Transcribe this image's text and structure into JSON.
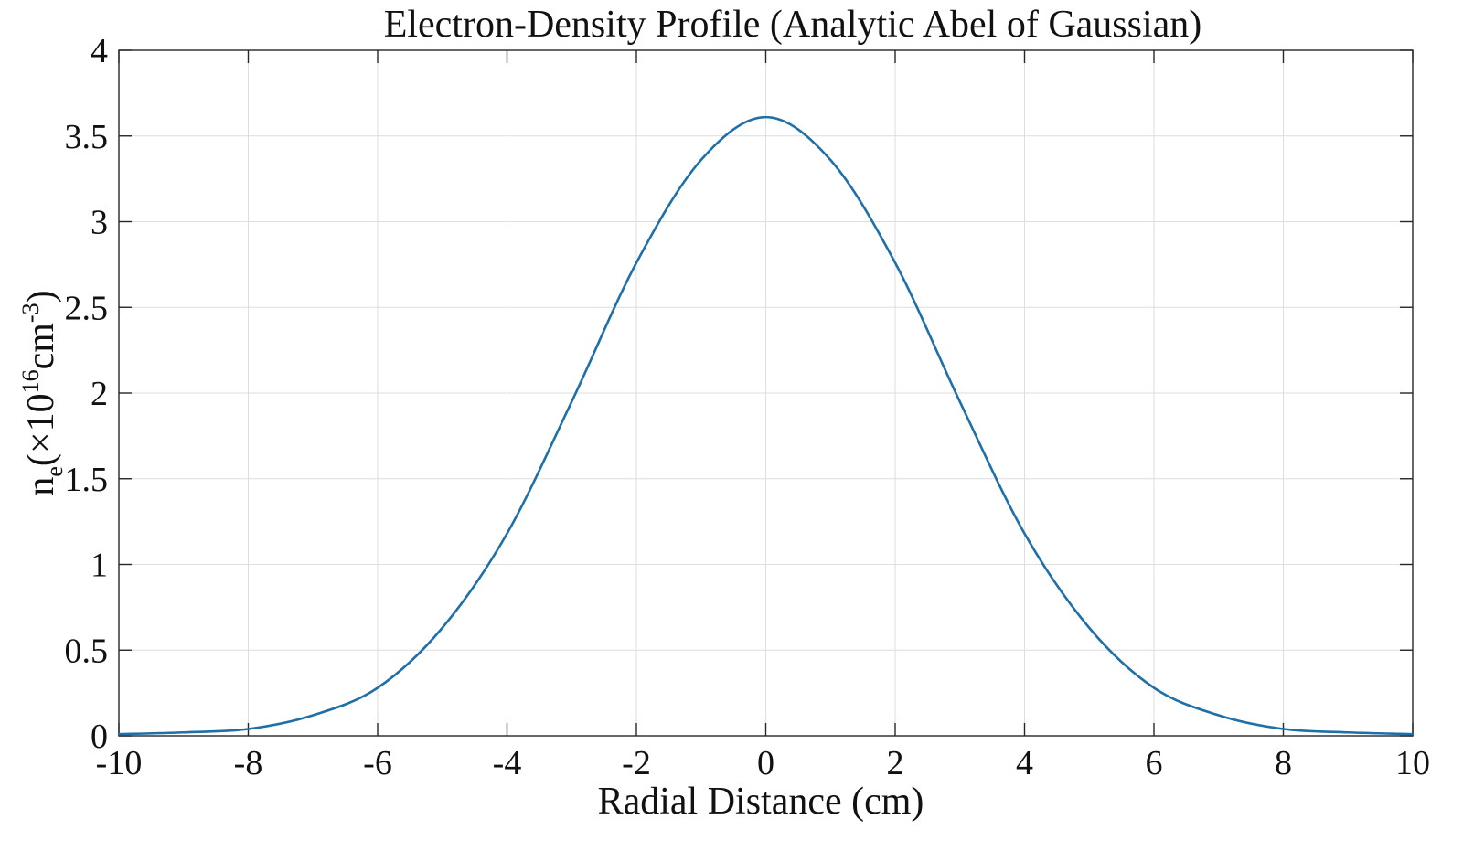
{
  "chart_data": {
    "type": "line",
    "title": "Electron-Density Profile (Analytic Abel of Gaussian)",
    "xlabel": "Radial Distance (cm)",
    "ylabel": {
      "base": "n",
      "sub": "e",
      "open": "(×10",
      "exp": "16",
      "unit": "cm",
      "unit_exp": "-3",
      "close": ")"
    },
    "xlim": [
      -10,
      10
    ],
    "ylim": [
      0,
      4
    ],
    "x_ticks": [
      -10,
      -8,
      -6,
      -4,
      -2,
      0,
      2,
      4,
      6,
      8,
      10
    ],
    "y_ticks": [
      0,
      0.5,
      1,
      1.5,
      2,
      2.5,
      3,
      3.5,
      4
    ],
    "x_tick_labels": [
      "-10",
      "-8",
      "-6",
      "-4",
      "-2",
      "0",
      "2",
      "4",
      "6",
      "8",
      "10"
    ],
    "y_tick_labels": [
      "0",
      "0.5",
      "1",
      "1.5",
      "2",
      "2.5",
      "3",
      "3.5",
      "4"
    ],
    "grid": true,
    "series": [
      {
        "color": "#1f6fa8",
        "x": [
          -10,
          -9,
          -8,
          -7,
          -6,
          -5,
          -4,
          -3,
          -2,
          -1,
          0,
          1,
          2,
          3,
          4,
          5,
          6,
          7,
          8,
          9,
          10
        ],
        "y": [
          0.01,
          0.02,
          0.04,
          0.12,
          0.28,
          0.63,
          1.18,
          1.95,
          2.76,
          3.36,
          3.61,
          3.36,
          2.76,
          1.95,
          1.18,
          0.63,
          0.28,
          0.12,
          0.04,
          0.02,
          0.01
        ]
      }
    ]
  }
}
